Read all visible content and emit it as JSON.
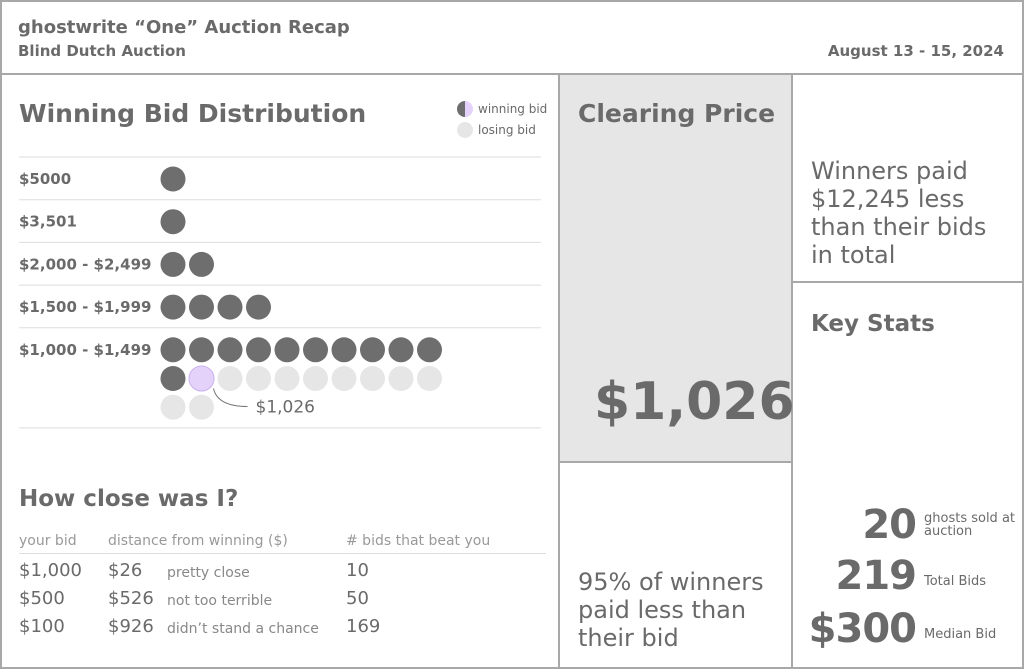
{
  "header": {
    "title": "ghostwrite “One” Auction Recap",
    "subtitle": "Blind Dutch Auction",
    "date": "August 13 - 15, 2024"
  },
  "distribution": {
    "title": "Winning Bid Distribution",
    "legend": {
      "winning": "winning bid",
      "losing": "losing bid"
    },
    "rows": [
      {
        "label": "$5000",
        "winning": 1,
        "losing": 0
      },
      {
        "label": "$3,501",
        "winning": 1,
        "losing": 0
      },
      {
        "label": "$2,000 - $2,499",
        "winning": 2,
        "losing": 0
      },
      {
        "label": "$1,500 - $1,999",
        "winning": 4,
        "losing": 0
      },
      {
        "label": "$1,000 - $1,499",
        "winning": 12,
        "losing": 10,
        "annotation": "$1,026"
      }
    ]
  },
  "closeness": {
    "title": "How close was I?",
    "columns": [
      "your bid",
      "distance from winning ($)",
      "# bids that beat you"
    ],
    "rows": [
      {
        "bid": "$1,000",
        "distance": "$26",
        "note": "pretty close",
        "beat": "10"
      },
      {
        "bid": "$500",
        "distance": "$526",
        "note": "not too terrible",
        "beat": "50"
      },
      {
        "bid": "$100",
        "distance": "$926",
        "note": "didn’t stand a chance",
        "beat": "169"
      }
    ]
  },
  "clearing": {
    "title": "Clearing Price",
    "value": "$1,026"
  },
  "winners_note": "95% of winners paid less than their bid",
  "savings_note": "Winners paid $12,245 less than their bids in total",
  "key_stats": {
    "title": "Key Stats",
    "stats": [
      {
        "value": "20",
        "label": "ghosts sold at auction"
      },
      {
        "value": "219",
        "label": "Total Bids"
      },
      {
        "value": "$300",
        "label": "Median Bid"
      }
    ]
  }
}
